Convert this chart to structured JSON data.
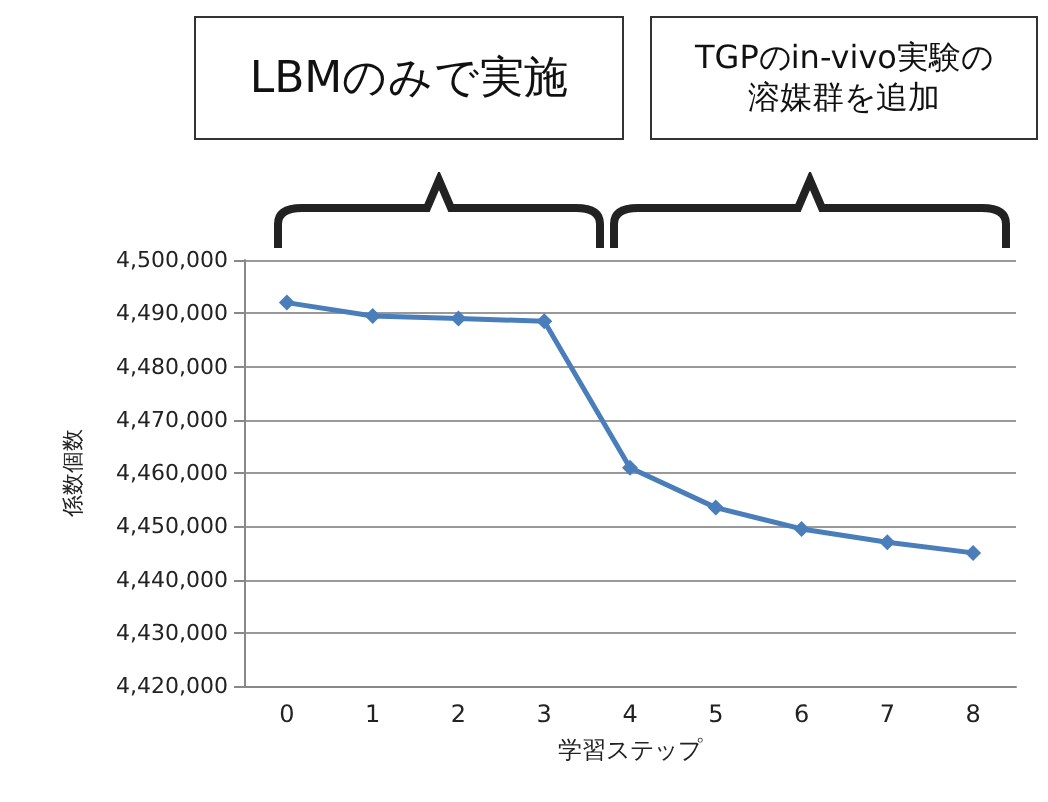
{
  "chart_data": {
    "type": "line",
    "xlabel": "学習ステップ",
    "ylabel": "係数個数",
    "annotations": [
      "LBMのみで実施",
      "TGPのin-vivo実験の溶媒群を追加"
    ],
    "categories": [
      "0",
      "1",
      "2",
      "3",
      "4",
      "5",
      "6",
      "7",
      "8"
    ],
    "series": [
      {
        "color": "#4a7ebb",
        "values": [
          4492000,
          4489500,
          4489000,
          4488500,
          4461000,
          4453500,
          4449500,
          4447000,
          4445000
        ]
      }
    ],
    "ylim": [
      4420000,
      4500000
    ],
    "yticks": [
      {
        "value": 4420000,
        "label": "4,420,000"
      },
      {
        "value": 4430000,
        "label": "4,430,000"
      },
      {
        "value": 4440000,
        "label": "4,440,000"
      },
      {
        "value": 4450000,
        "label": "4,450,000"
      },
      {
        "value": 4460000,
        "label": "4,460,000"
      },
      {
        "value": 4470000,
        "label": "4,470,000"
      },
      {
        "value": 4480000,
        "label": "4,480,000"
      },
      {
        "value": 4490000,
        "label": "4,490,000"
      },
      {
        "value": 4500000,
        "label": "4,500,000"
      }
    ],
    "grid": "y",
    "marker": "diamond",
    "line_style": "solid"
  }
}
